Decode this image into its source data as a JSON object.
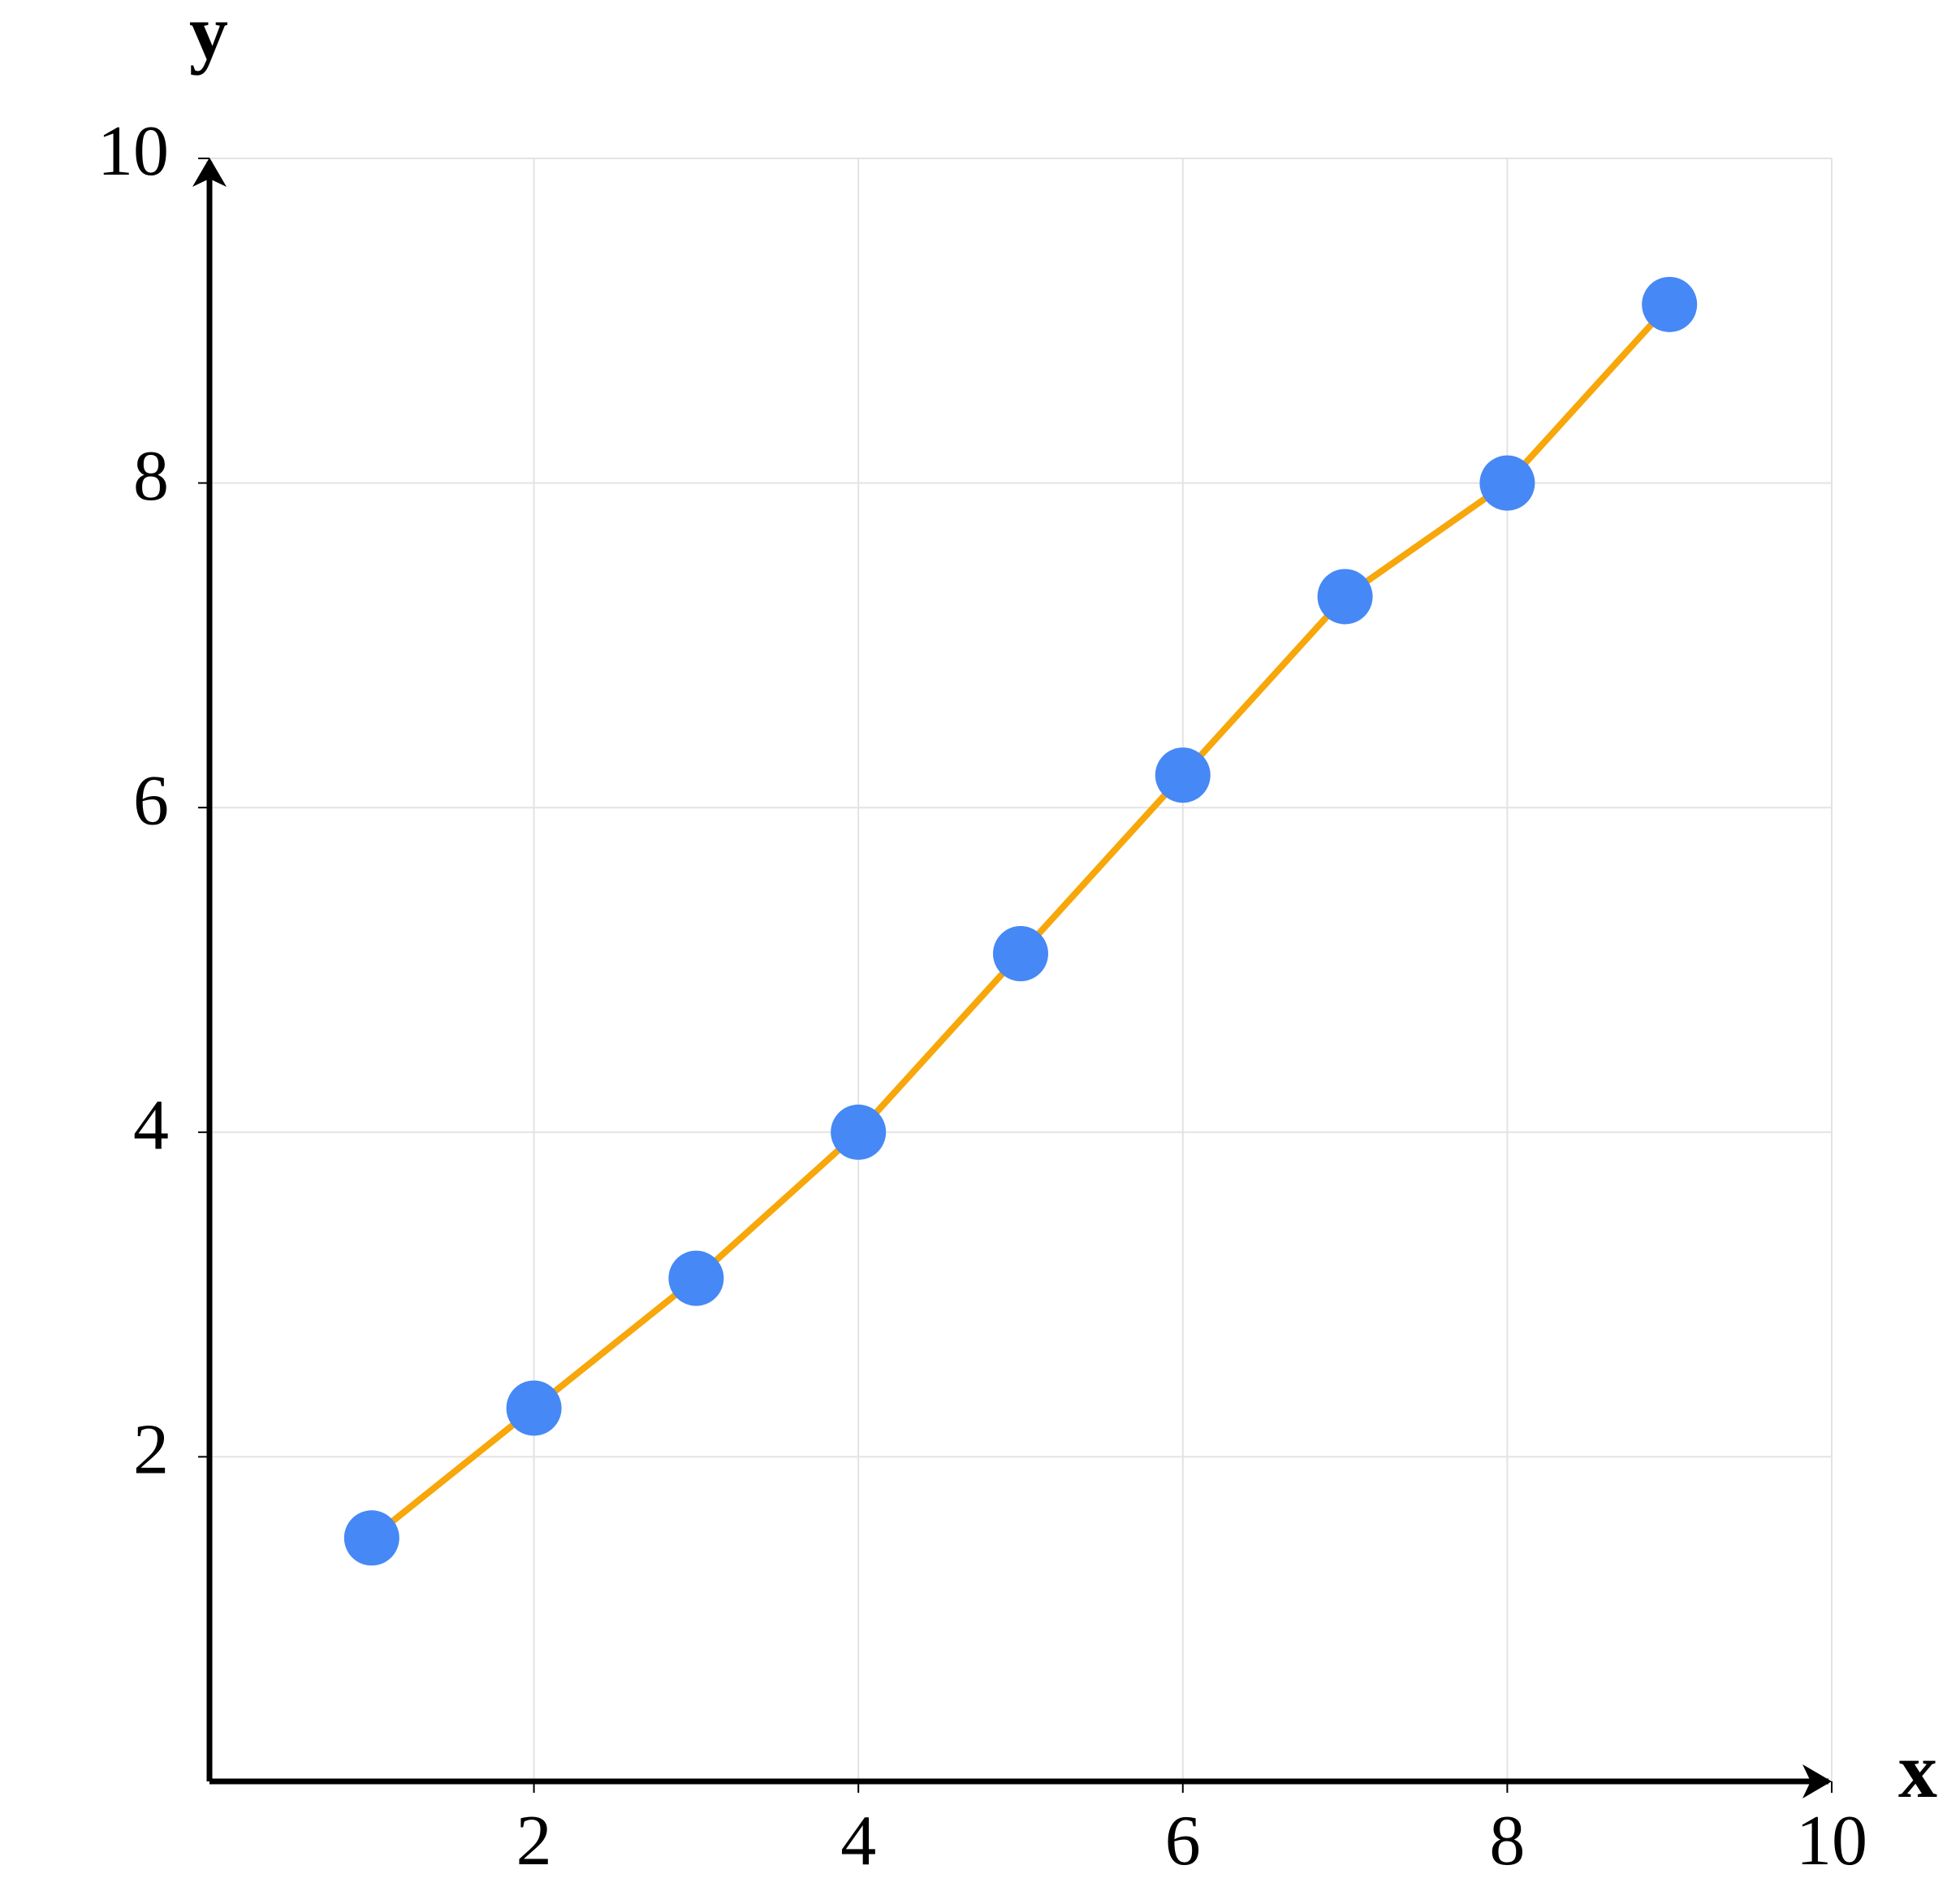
{
  "chart_data": {
    "type": "line",
    "x_label": "x",
    "y_label": "y",
    "x": [
      1,
      2,
      3,
      4,
      5,
      6,
      7,
      8,
      9
    ],
    "series": [
      {
        "color": "#f7a70a",
        "marker_color": "#4688f5",
        "values": [
          1.5,
          2.3,
          3.1,
          4.0,
          5.1,
          6.2,
          7.3,
          8.0,
          9.1
        ]
      }
    ],
    "xlim": [
      0,
      10
    ],
    "ylim": [
      0,
      10
    ],
    "xticks": [
      2,
      4,
      6,
      8,
      10
    ],
    "yticks": [
      2,
      4,
      6,
      8,
      10
    ],
    "grid": true
  }
}
